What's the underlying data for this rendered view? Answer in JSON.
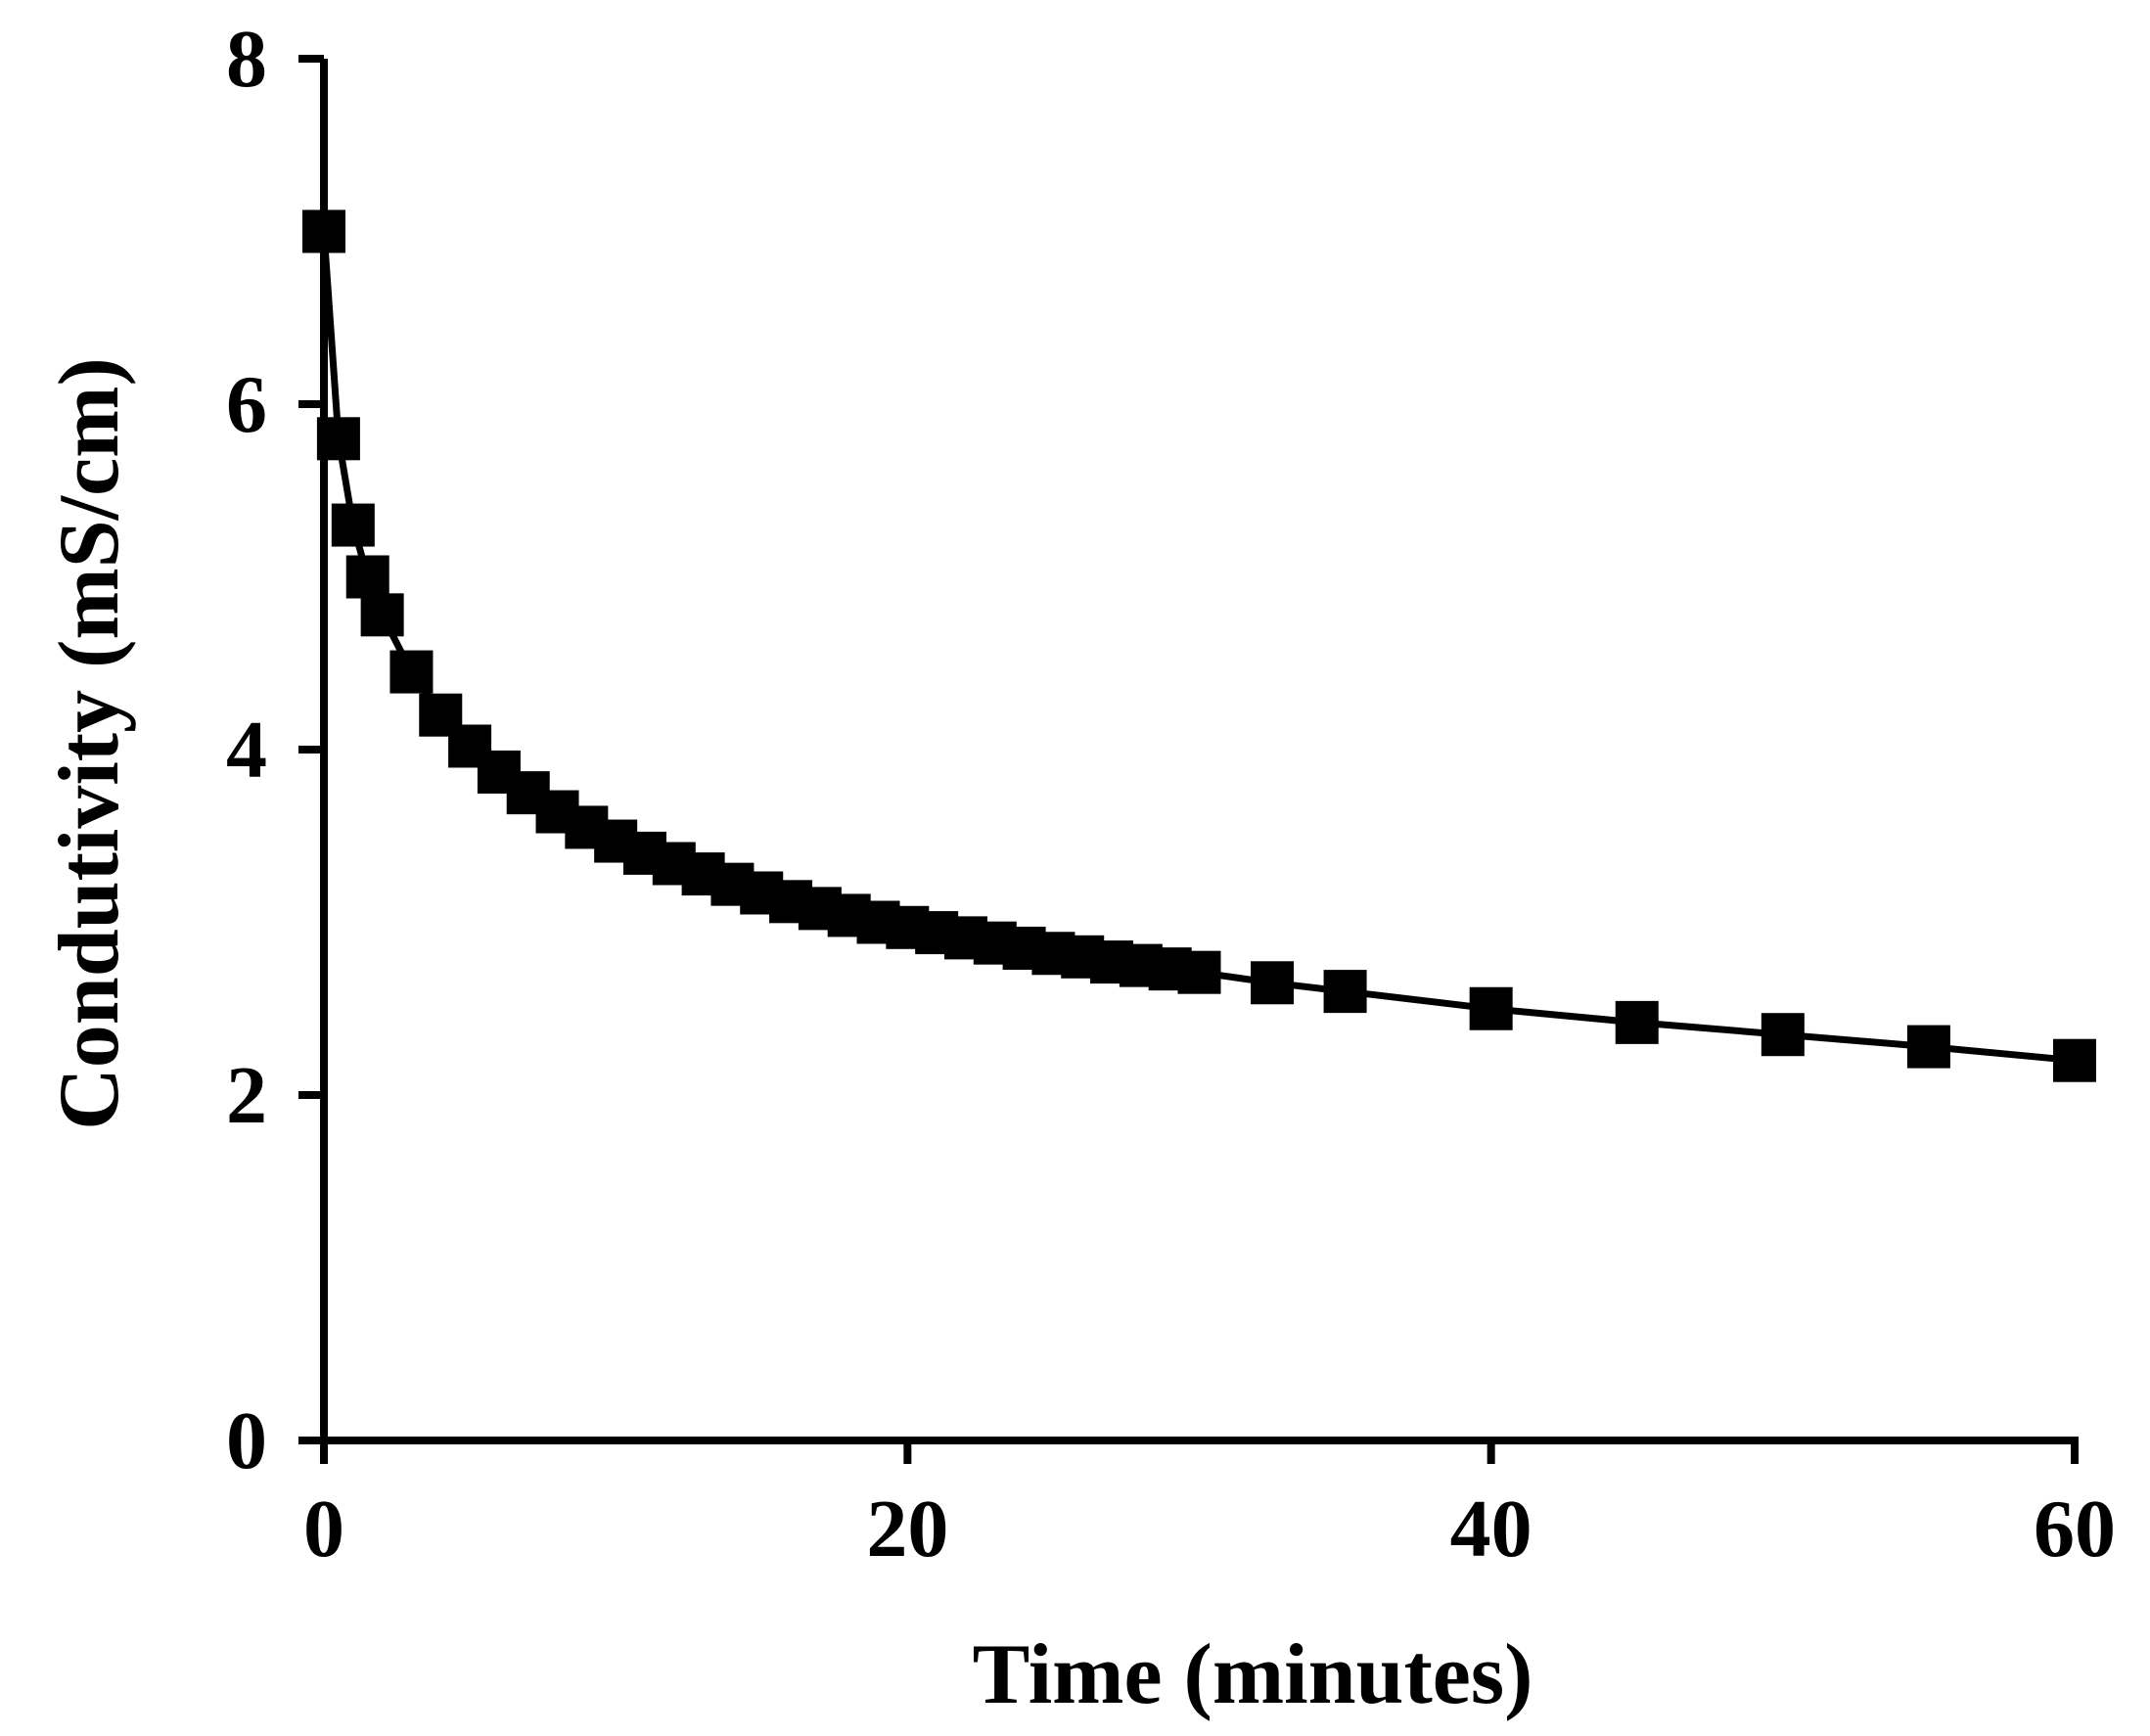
{
  "chart_data": {
    "type": "line",
    "title": "",
    "xlabel": "Time (minutes)",
    "ylabel": "Condutivity  (mS/cm)",
    "xlim": [
      0,
      60
    ],
    "ylim": [
      0,
      8
    ],
    "xticks": [
      0,
      20,
      40,
      60
    ],
    "yticks": [
      0,
      2,
      4,
      6,
      8
    ],
    "grid": false,
    "legend": "none",
    "marker": "square",
    "line_color": "#000000",
    "series": [
      {
        "x": [
          0,
          0.5,
          1,
          1.5,
          2,
          3,
          4,
          5,
          6,
          7,
          8,
          9,
          10,
          11,
          12,
          13,
          14,
          15,
          16,
          17,
          18,
          19,
          20,
          21,
          22,
          23,
          24,
          25,
          26,
          27,
          28,
          29,
          30,
          32.5,
          35,
          40,
          45,
          50,
          55,
          60
        ],
        "y": [
          7.0,
          5.8,
          5.3,
          5.0,
          4.78,
          4.45,
          4.2,
          4.02,
          3.87,
          3.75,
          3.64,
          3.55,
          3.47,
          3.4,
          3.34,
          3.28,
          3.22,
          3.17,
          3.12,
          3.08,
          3.04,
          3.0,
          2.97,
          2.94,
          2.91,
          2.88,
          2.85,
          2.82,
          2.8,
          2.77,
          2.75,
          2.73,
          2.71,
          2.65,
          2.6,
          2.5,
          2.42,
          2.35,
          2.28,
          2.2
        ]
      }
    ]
  }
}
